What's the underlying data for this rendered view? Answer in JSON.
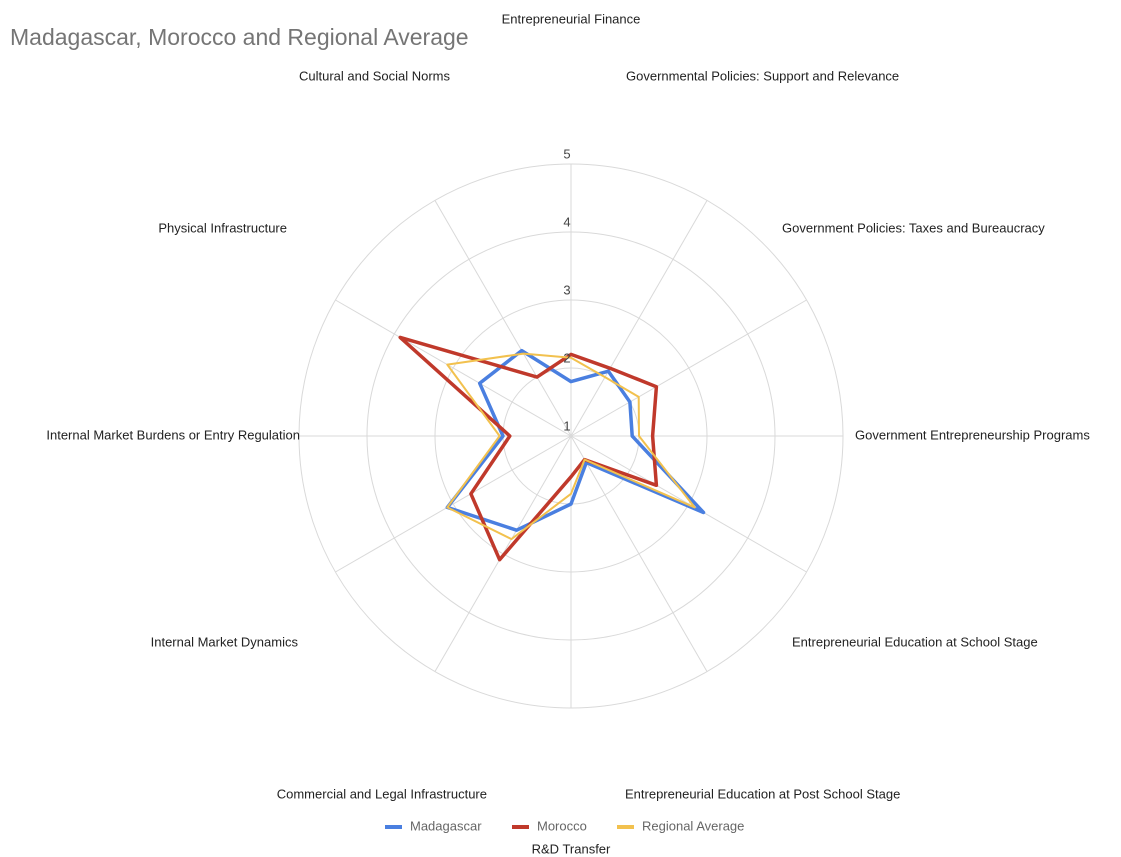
{
  "chart_data": {
    "type": "radar",
    "title": "Madagascar, Morocco and Regional Average",
    "categories": [
      "Entrepreneurial Finance",
      "Governmental Policies: Support and Relevance",
      "Government Policies: Taxes and Bureaucracy",
      "Government Entrepreneurship Programs",
      "Entrepreneurial Education at School Stage",
      "Entrepreneurial Education at Post School Stage",
      "R&D Transfer",
      "Commercial and Legal Infrastructure",
      "Internal Market Dynamics",
      "Internal Market Burdens or Entry Regulation",
      "Physical Infrastructure",
      "Cultural and Social Norms"
    ],
    "series": [
      {
        "name": "Madagascar",
        "color": "#4a7fe0",
        "values": [
          1.8,
          2.1,
          2.0,
          1.9,
          3.25,
          1.45,
          2.0,
          2.6,
          3.1,
          2.0,
          2.55,
          2.45
        ]
      },
      {
        "name": "Morocco",
        "color": "#c0392b",
        "values": [
          2.2,
          2.15,
          2.45,
          2.2,
          2.45,
          1.4,
          1.6,
          3.1,
          2.7,
          1.9,
          3.9,
          2.0
        ]
      },
      {
        "name": "Regional Average",
        "color": "#f2c14e",
        "values": [
          2.15,
          2.0,
          2.15,
          2.0,
          3.1,
          1.4,
          1.85,
          2.75,
          3.1,
          2.05,
          3.1,
          2.4
        ]
      }
    ],
    "rlim": [
      1,
      5
    ],
    "rticks": [
      1,
      2,
      3,
      4,
      5
    ],
    "grid": true,
    "legend": "bottom"
  }
}
